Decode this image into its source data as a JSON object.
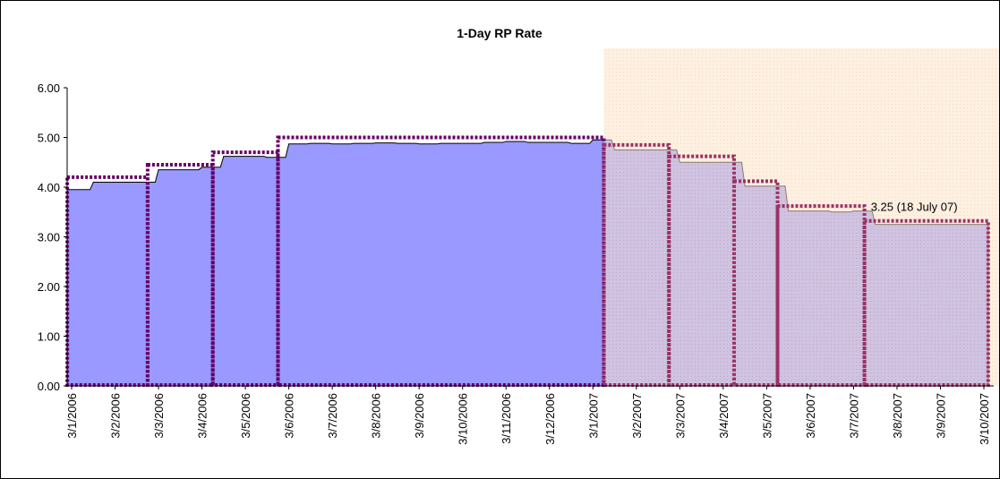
{
  "chart_data": {
    "type": "area",
    "title": "1-Day RP Rate",
    "categories": [
      "3/1/2006",
      null,
      "3/2/2006",
      null,
      "3/3/2006",
      null,
      "3/4/2006",
      null,
      "3/5/2006",
      null,
      "3/6/2006",
      null,
      "3/7/2006",
      null,
      "3/8/2006",
      null,
      "3/9/2006",
      null,
      "3/10/2006",
      null,
      "3/11/2006",
      null,
      "3/12/2006",
      null,
      "3/1/2007",
      null,
      "3/2/2007",
      null,
      "3/3/2007",
      null,
      "3/4/2007",
      null,
      "3/5/2007",
      null,
      "3/6/2007",
      null,
      "3/7/2007",
      null,
      "3/8/2007",
      null,
      "3/9/2007",
      null,
      "3/10/2007"
    ],
    "series": [
      {
        "color": "#9999ff",
        "values": [
          3.95,
          4.1,
          4.1,
          4.1,
          4.35,
          4.35,
          4.4,
          4.62,
          4.62,
          4.6,
          4.87,
          4.88,
          4.87,
          4.88,
          4.89,
          4.88,
          4.87,
          4.88,
          4.88,
          4.9,
          4.92,
          4.9,
          4.9,
          4.88,
          4.95,
          4.75,
          4.75,
          4.75,
          4.5,
          4.5,
          4.5,
          4.02,
          4.02,
          3.52,
          3.52,
          3.5,
          3.52,
          3.25,
          3.25,
          3.25,
          3.25,
          3.25,
          3.25
        ]
      },
      {
        "color": "#660066",
        "style": "dotted",
        "values": [
          4.2,
          4.2,
          4.2,
          4.2,
          4.45,
          4.45,
          4.45,
          4.7,
          4.7,
          4.7,
          5.0,
          5.0,
          5.0,
          5.0,
          5.0,
          5.0,
          5.0,
          5.0,
          5.0,
          5.0,
          5.0,
          5.0,
          5.0,
          5.0,
          5.0,
          null,
          null,
          null,
          null,
          null,
          null,
          null,
          null,
          null,
          null,
          null,
          null,
          null,
          null,
          null,
          null,
          null,
          null
        ]
      },
      {
        "color": "#993366",
        "style": "dotted",
        "values": [
          null,
          null,
          null,
          null,
          null,
          null,
          null,
          null,
          null,
          null,
          null,
          null,
          null,
          null,
          null,
          null,
          null,
          null,
          null,
          null,
          null,
          null,
          null,
          null,
          null,
          4.85,
          4.85,
          4.85,
          4.62,
          4.62,
          4.62,
          4.12,
          4.12,
          3.62,
          3.62,
          3.62,
          3.62,
          3.32,
          3.32,
          3.32,
          3.32,
          3.32,
          3.32
        ]
      }
    ],
    "annotation": "3.25 (18 July 07)",
    "ylim": [
      0,
      6
    ],
    "yticks": [
      {
        "value": 0,
        "label": "0.00"
      },
      {
        "value": 1,
        "label": "1.00"
      },
      {
        "value": 2,
        "label": "2.00"
      },
      {
        "value": 3,
        "label": "3.00"
      },
      {
        "value": 4,
        "label": "4.00"
      },
      {
        "value": 5,
        "label": "5.00"
      },
      {
        "value": 6,
        "label": "6.00"
      }
    ],
    "grid": false
  }
}
